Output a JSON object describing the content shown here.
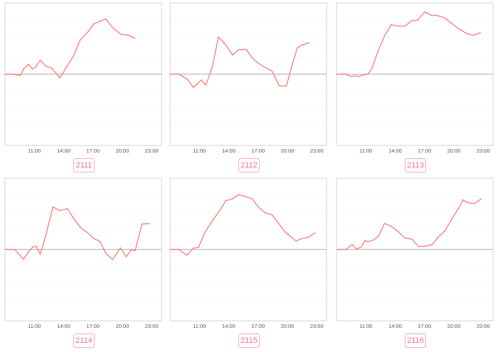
{
  "chart_data": [
    {
      "type": "line",
      "label": "2111",
      "xlim": [
        "08:00",
        "24:00"
      ],
      "ylim": [
        -4,
        4
      ],
      "grid": true,
      "xticks": [
        "11:00",
        "14:00",
        "17:00",
        "20:00",
        "23:00"
      ],
      "x": [
        "08:00",
        "08:48",
        "09:36",
        "09:54",
        "10:24",
        "10:48",
        "11:06",
        "11:36",
        "12:12",
        "12:48",
        "13:36",
        "15:00",
        "15:42",
        "16:30",
        "17:06",
        "17:42",
        "18:18",
        "19:06",
        "19:54",
        "20:18",
        "20:54",
        "21:18"
      ],
      "values": [
        0,
        0,
        -0.08,
        0.29,
        0.55,
        0.29,
        0.38,
        0.78,
        0.45,
        0.33,
        -0.21,
        1.01,
        1.93,
        2.39,
        2.83,
        2.96,
        3.1,
        2.55,
        2.22,
        2.22,
        2.13,
        2.0
      ]
    },
    {
      "type": "line",
      "label": "2112",
      "xlim": [
        "08:00",
        "24:00"
      ],
      "ylim": [
        -4,
        4
      ],
      "grid": true,
      "xticks": [
        "11:00",
        "14:00",
        "17:00",
        "20:00",
        "23:00"
      ],
      "x": [
        "08:00",
        "08:56",
        "09:47",
        "10:23",
        "10:46",
        "11:12",
        "11:40",
        "12:20",
        "12:57",
        "13:41",
        "14:25",
        "15:01",
        "15:46",
        "16:29",
        "17:06",
        "17:50",
        "18:26",
        "19:10",
        "19:54",
        "20:31",
        "21:00",
        "21:29",
        "22:13"
      ],
      "values": [
        0,
        0,
        -0.29,
        -0.74,
        -0.55,
        -0.32,
        -0.62,
        0.43,
        2.09,
        1.66,
        1.07,
        1.39,
        1.39,
        0.87,
        0.58,
        0.34,
        0.17,
        -0.66,
        -0.66,
        0.6,
        1.46,
        1.63,
        1.76
      ]
    },
    {
      "type": "line",
      "label": "2113",
      "xlim": [
        "08:00",
        "24:00"
      ],
      "ylim": [
        -4,
        4
      ],
      "grid": true,
      "xticks": [
        "11:00",
        "14:00",
        "17:00",
        "20:00",
        "23:00"
      ],
      "x": [
        "08:00",
        "08:54",
        "09:30",
        "09:54",
        "10:18",
        "10:48",
        "11:12",
        "11:36",
        "12:12",
        "12:54",
        "13:36",
        "14:18",
        "15:00",
        "15:42",
        "16:18",
        "17:00",
        "17:42",
        "18:18",
        "19:00",
        "19:48",
        "20:30",
        "21:18",
        "22:00",
        "22:42"
      ],
      "values": [
        0,
        0,
        -0.13,
        -0.09,
        -0.13,
        -0.03,
        0,
        0.3,
        1.22,
        2.14,
        2.78,
        2.7,
        2.7,
        3.0,
        3.03,
        3.49,
        3.3,
        3.29,
        3.17,
        2.83,
        2.54,
        2.28,
        2.18,
        2.32
      ]
    },
    {
      "type": "line",
      "label": "2114",
      "xlim": [
        "08:00",
        "24:00"
      ],
      "ylim": [
        -4,
        4
      ],
      "grid": true,
      "xticks": [
        "11:00",
        "14:00",
        "17:00",
        "20:00",
        "23:00"
      ],
      "x": [
        "08:00",
        "09:00",
        "09:54",
        "10:24",
        "10:48",
        "11:12",
        "11:36",
        "12:12",
        "12:54",
        "13:36",
        "14:24",
        "15:00",
        "15:42",
        "16:24",
        "17:06",
        "17:42",
        "18:18",
        "19:00",
        "19:48",
        "20:24",
        "20:54",
        "21:18",
        "22:00",
        "22:48"
      ],
      "values": [
        0,
        0,
        -0.55,
        -0.14,
        0.12,
        0.18,
        -0.28,
        0.84,
        2.38,
        2.18,
        2.29,
        1.74,
        1.24,
        0.95,
        0.61,
        0.45,
        -0.21,
        -0.57,
        0.09,
        -0.41,
        -0.01,
        -0.08,
        1.43,
        1.45
      ]
    },
    {
      "type": "line",
      "label": "2115",
      "xlim": [
        "08:00",
        "24:00"
      ],
      "ylim": [
        -4,
        4
      ],
      "grid": true,
      "xticks": [
        "11:00",
        "14:00",
        "17:00",
        "20:00",
        "23:00"
      ],
      "x": [
        "08:00",
        "08:54",
        "09:42",
        "09:54",
        "10:24",
        "10:54",
        "11:36",
        "12:18",
        "13:00",
        "13:42",
        "14:24",
        "15:00",
        "15:42",
        "16:24",
        "17:06",
        "17:48",
        "18:24",
        "19:06",
        "19:48",
        "20:24",
        "20:54",
        "21:24",
        "22:06",
        "22:48"
      ],
      "values": [
        0,
        0,
        -0.32,
        -0.22,
        0.07,
        0.12,
        1.0,
        1.59,
        2.12,
        2.74,
        2.84,
        3.08,
        2.97,
        2.84,
        2.34,
        2.03,
        1.96,
        1.46,
        0.96,
        0.7,
        0.47,
        0.61,
        0.67,
        0.93
      ]
    },
    {
      "type": "line",
      "label": "2116",
      "xlim": [
        "08:00",
        "24:00"
      ],
      "ylim": [
        -4,
        4
      ],
      "grid": true,
      "xticks": [
        "11:00",
        "14:00",
        "17:00",
        "20:00",
        "23:00"
      ],
      "x": [
        "08:06",
        "09:00",
        "09:36",
        "10:00",
        "10:30",
        "10:54",
        "11:12",
        "11:42",
        "12:18",
        "12:54",
        "13:36",
        "14:18",
        "15:00",
        "15:42",
        "16:24",
        "17:06",
        "17:48",
        "18:24",
        "19:06",
        "19:48",
        "20:30",
        "20:54",
        "21:24",
        "22:06",
        "22:48"
      ],
      "values": [
        0,
        0,
        0.28,
        0.04,
        0.11,
        0.51,
        0.43,
        0.51,
        0.74,
        1.46,
        1.3,
        1.0,
        0.64,
        0.58,
        0.16,
        0.18,
        0.28,
        0.7,
        1.05,
        1.72,
        2.32,
        2.78,
        2.62,
        2.58,
        2.84
      ]
    }
  ],
  "colors": {
    "line": "#ff7070",
    "zero_line": "#bdbdbd",
    "grid": "#eeeeee",
    "frame": "#e2e2e2",
    "tag_text": "#f2708f",
    "tag_border": "#f7a8bf"
  }
}
